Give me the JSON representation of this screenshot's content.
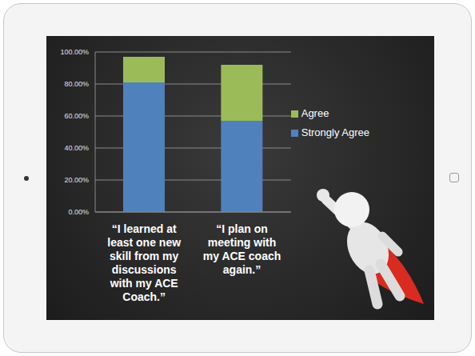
{
  "chart_data": {
    "type": "bar",
    "stacked": true,
    "categories": [
      "“I learned at least one new skill from my discussions with my ACE Coach.”",
      "“I plan on meeting with my ACE coach again.”"
    ],
    "series": [
      {
        "name": "Strongly Agree",
        "color": "#4f81bd",
        "values": [
          81,
          57
        ]
      },
      {
        "name": "Agree",
        "color": "#9bbb59",
        "values": [
          16,
          35
        ]
      }
    ],
    "ylim": [
      0,
      100
    ],
    "yticks": [
      {
        "value": 0,
        "label": "0.00%"
      },
      {
        "value": 20,
        "label": "20.00%"
      },
      {
        "value": 40,
        "label": "40.00%"
      },
      {
        "value": 60,
        "label": "60.00%"
      },
      {
        "value": 80,
        "label": "80.00%"
      },
      {
        "value": 100,
        "label": "100.00%"
      }
    ],
    "grid": true,
    "legend": "right"
  }
}
